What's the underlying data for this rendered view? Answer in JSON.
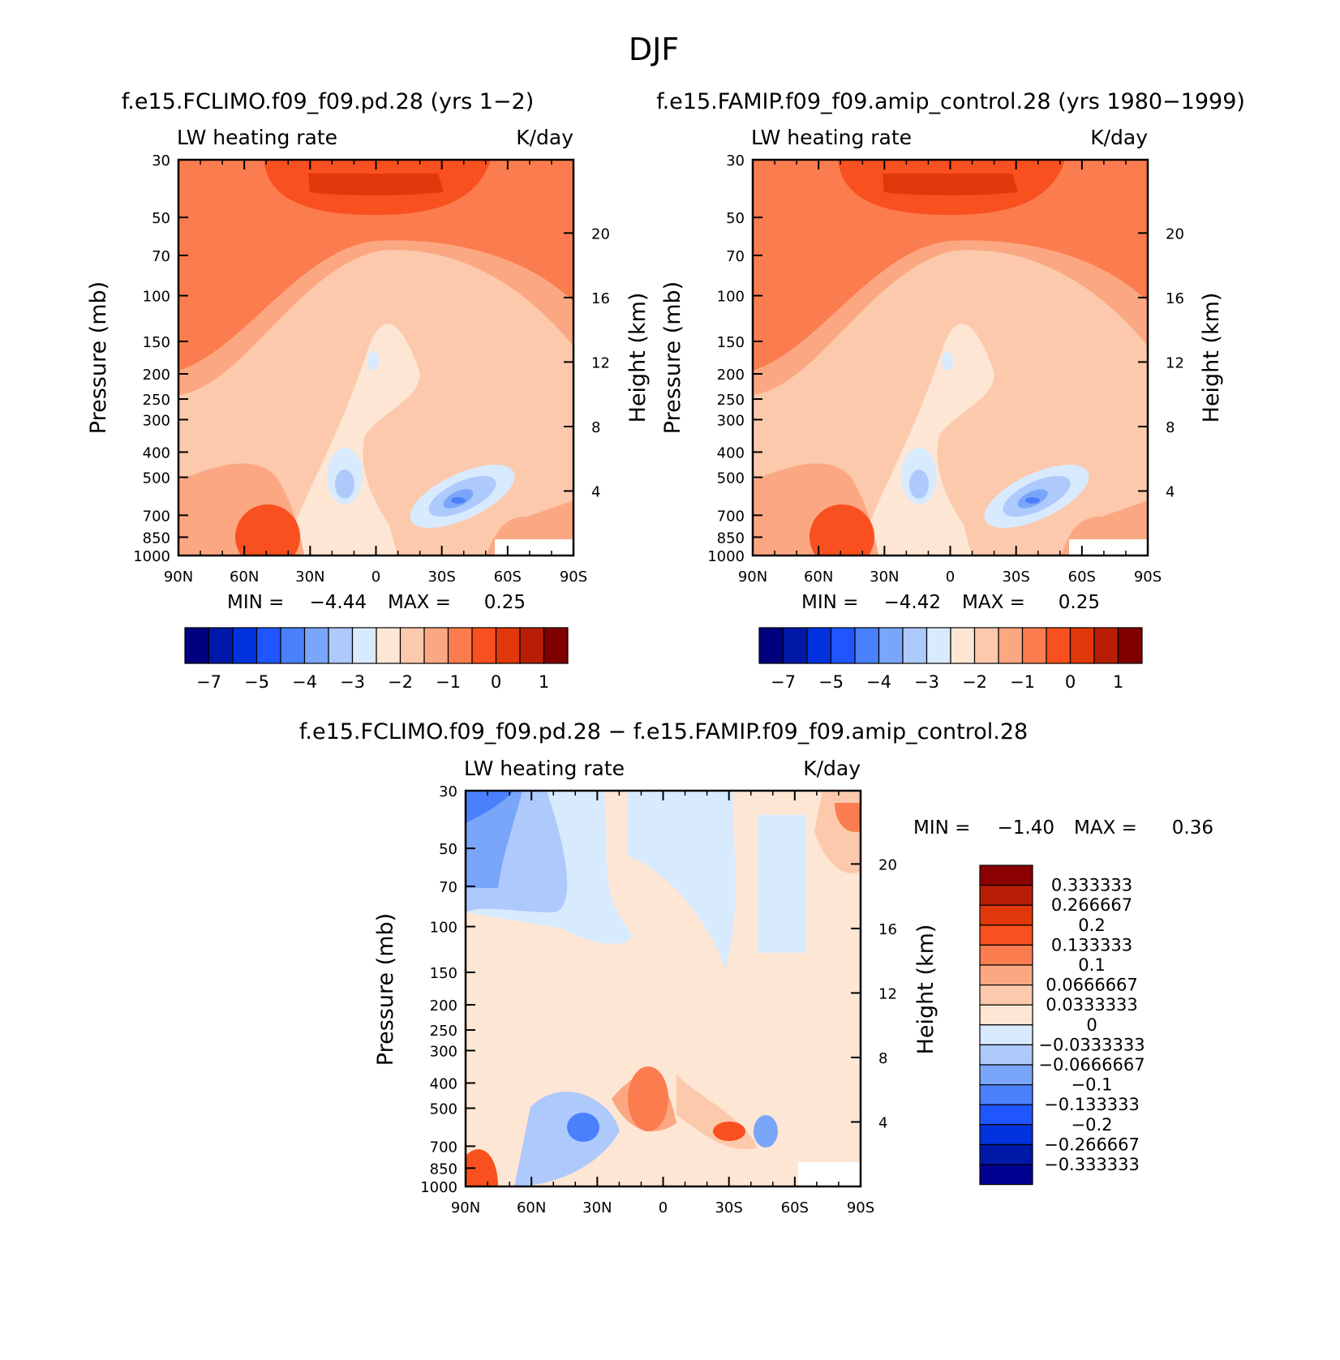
{
  "figure_title": "DJF",
  "colors": {
    "abs_scale": [
      "#00007f",
      "#0018a8",
      "#0033dd",
      "#1f56ff",
      "#4a80fb",
      "#7aa6fa",
      "#aec9fc",
      "#d8eafe",
      "#fde6d4",
      "#fcc9ac",
      "#fba882",
      "#fb7c4e",
      "#f9501f",
      "#e0380a",
      "#b81e05",
      "#800000"
    ],
    "diff_scale": [
      "#000090",
      "#0018a8",
      "#0033dd",
      "#1f56ff",
      "#4a80fb",
      "#7aa6fa",
      "#aec9fc",
      "#d8eafe",
      "#fde6d4",
      "#fcc9ac",
      "#fba882",
      "#fb7c4e",
      "#f9501f",
      "#e0380a",
      "#b81e05",
      "#8b0000"
    ]
  },
  "chart_data": [
    {
      "type": "heatmap",
      "title": "f.e15.FCLIMO.f09_f09.pd.28 (yrs 1−2)",
      "left_label": "LW heating rate",
      "right_label": "K/day",
      "ylabel": "Pressure (mb)",
      "y2label": "Height (km)",
      "x_ticks": [
        "90N",
        "60N",
        "30N",
        "0",
        "30S",
        "60S",
        "90S"
      ],
      "y_ticks": [
        "30",
        "50",
        "70",
        "100",
        "150",
        "200",
        "250",
        "300",
        "400",
        "500",
        "700",
        "850",
        "1000"
      ],
      "y2_ticks": [
        "20",
        "16",
        "12",
        "8",
        "4"
      ],
      "stats": {
        "min_label": "MIN =",
        "min": "−4.44",
        "max_label": "MAX =",
        "max": "0.25"
      },
      "colorbar_labels": [
        "−7",
        "−5",
        "−4",
        "−3",
        "−2",
        "−1",
        "0",
        "1"
      ]
    },
    {
      "type": "heatmap",
      "title": "f.e15.FAMIP.f09_f09.amip_control.28 (yrs 1980−1999)",
      "left_label": "LW heating rate",
      "right_label": "K/day",
      "ylabel": "Pressure (mb)",
      "y2label": "Height (km)",
      "x_ticks": [
        "90N",
        "60N",
        "30N",
        "0",
        "30S",
        "60S",
        "90S"
      ],
      "y_ticks": [
        "30",
        "50",
        "70",
        "100",
        "150",
        "200",
        "250",
        "300",
        "400",
        "500",
        "700",
        "850",
        "1000"
      ],
      "y2_ticks": [
        "20",
        "16",
        "12",
        "8",
        "4"
      ],
      "stats": {
        "min_label": "MIN =",
        "min": "−4.42",
        "max_label": "MAX =",
        "max": "0.25"
      },
      "colorbar_labels": [
        "−7",
        "−5",
        "−4",
        "−3",
        "−2",
        "−1",
        "0",
        "1"
      ]
    },
    {
      "type": "heatmap",
      "title": "f.e15.FCLIMO.f09_f09.pd.28 − f.e15.FAMIP.f09_f09.amip_control.28",
      "left_label": "LW heating rate",
      "right_label": "K/day",
      "ylabel": "Pressure (mb)",
      "y2label": "Height (km)",
      "x_ticks": [
        "90N",
        "60N",
        "30N",
        "0",
        "30S",
        "60S",
        "90S"
      ],
      "y_ticks": [
        "30",
        "50",
        "70",
        "100",
        "150",
        "200",
        "250",
        "300",
        "400",
        "500",
        "700",
        "850",
        "1000"
      ],
      "y2_ticks": [
        "20",
        "16",
        "12",
        "8",
        "4"
      ],
      "stats": {
        "min_label": "MIN =",
        "min": "−1.40",
        "max_label": "MAX =",
        "max": "0.36"
      },
      "colorbar_labels": [
        "0.333333",
        "0.266667",
        "0.2",
        "0.133333",
        "0.1",
        "0.0666667",
        "0.0333333",
        "0",
        "−0.0333333",
        "−0.0666667",
        "−0.1",
        "−0.133333",
        "−0.2",
        "−0.266667",
        "−0.333333"
      ]
    }
  ]
}
